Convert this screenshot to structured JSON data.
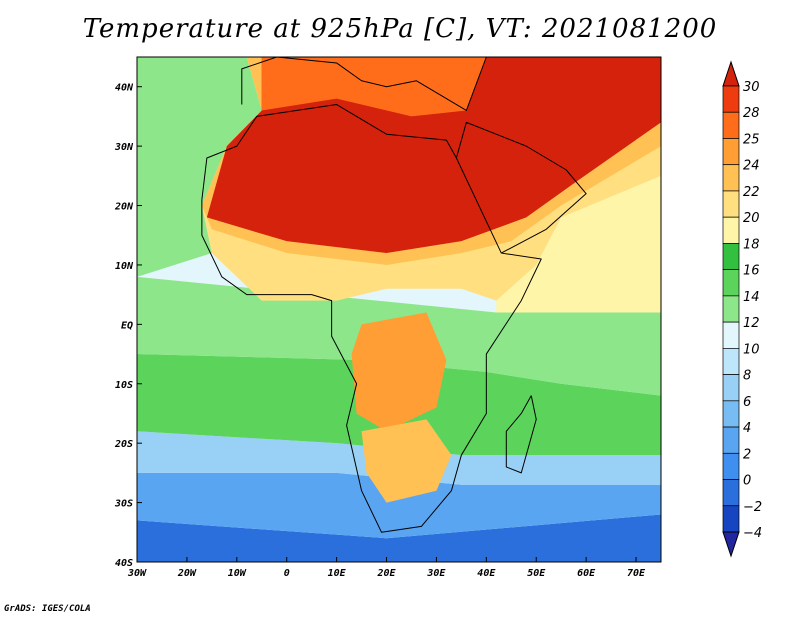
{
  "title": "Temperature at 925hPa [C], VT: 2021081200",
  "credit": "GrADS: IGES/COLA",
  "map": {
    "lon_range": [
      -30,
      75
    ],
    "lat_range": [
      -40,
      45
    ],
    "lon_ticks": [
      {
        "value": -30,
        "label": "30W"
      },
      {
        "value": -20,
        "label": "20W"
      },
      {
        "value": -10,
        "label": "10W"
      },
      {
        "value": 0,
        "label": "0"
      },
      {
        "value": 10,
        "label": "10E"
      },
      {
        "value": 20,
        "label": "20E"
      },
      {
        "value": 30,
        "label": "30E"
      },
      {
        "value": 40,
        "label": "40E"
      },
      {
        "value": 50,
        "label": "50E"
      },
      {
        "value": 60,
        "label": "60E"
      },
      {
        "value": 70,
        "label": "70E"
      }
    ],
    "lat_ticks": [
      {
        "value": 40,
        "label": "40N"
      },
      {
        "value": 30,
        "label": "30N"
      },
      {
        "value": 20,
        "label": "20N"
      },
      {
        "value": 10,
        "label": "10N"
      },
      {
        "value": 0,
        "label": "EQ"
      },
      {
        "value": -10,
        "label": "10S"
      },
      {
        "value": -20,
        "label": "20S"
      },
      {
        "value": -30,
        "label": "30S"
      },
      {
        "value": -40,
        "label": "40S"
      }
    ]
  },
  "colorbar": {
    "levels": [
      -4,
      -2,
      0,
      2,
      4,
      6,
      8,
      10,
      12,
      14,
      16,
      18,
      20,
      22,
      24,
      25,
      28,
      30
    ],
    "colors": [
      "#2226a0",
      "#1745c2",
      "#2a6fdc",
      "#3e8ff0",
      "#5aa5f2",
      "#78bcf4",
      "#99d0f6",
      "#bee6fa",
      "#e2f6fc",
      "#8ee68a",
      "#5cd45c",
      "#33c040",
      "#fff5a8",
      "#ffdf80",
      "#ffc154",
      "#ff9e34",
      "#ff6d1a",
      "#ee3c10",
      "#d4220c"
    ]
  },
  "regions": [
    {
      "name": "south-ocean",
      "color": "#2a6fdc",
      "points": [
        [
          -30,
          -40
        ],
        [
          75,
          -40
        ],
        [
          75,
          -32
        ],
        [
          20,
          -36
        ],
        [
          -30,
          -33
        ]
      ]
    },
    {
      "name": "south-mid",
      "color": "#5aa5f2",
      "points": [
        [
          -30,
          -33
        ],
        [
          20,
          -36
        ],
        [
          75,
          -32
        ],
        [
          75,
          -27
        ],
        [
          35,
          -27
        ],
        [
          10,
          -25
        ],
        [
          -30,
          -25
        ]
      ]
    },
    {
      "name": "south-light",
      "color": "#99d0f6",
      "points": [
        [
          -30,
          -25
        ],
        [
          10,
          -25
        ],
        [
          35,
          -27
        ],
        [
          75,
          -27
        ],
        [
          75,
          -22
        ],
        [
          35,
          -22
        ],
        [
          10,
          -20
        ],
        [
          -30,
          -18
        ]
      ]
    },
    {
      "name": "tropics-green",
      "color": "#5cd45c",
      "points": [
        [
          -30,
          -18
        ],
        [
          10,
          -20
        ],
        [
          35,
          -22
        ],
        [
          75,
          -22
        ],
        [
          75,
          -12
        ],
        [
          55,
          -10
        ],
        [
          40,
          -8
        ],
        [
          15,
          -6
        ],
        [
          -30,
          -5
        ]
      ]
    },
    {
      "name": "tropics-pale",
      "color": "#8ee68a",
      "points": [
        [
          -30,
          -5
        ],
        [
          15,
          -6
        ],
        [
          40,
          -8
        ],
        [
          55,
          -10
        ],
        [
          75,
          -12
        ],
        [
          75,
          2
        ],
        [
          42,
          2
        ],
        [
          -30,
          8
        ]
      ]
    },
    {
      "name": "atlantic-north",
      "color": "#8ee68a",
      "points": [
        [
          -30,
          8
        ],
        [
          -15,
          12
        ],
        [
          -17,
          20
        ],
        [
          -12,
          30
        ],
        [
          -5,
          36
        ],
        [
          -8,
          45
        ],
        [
          -30,
          45
        ]
      ]
    },
    {
      "name": "indian-yellow",
      "color": "#fff5a8",
      "points": [
        [
          42,
          2
        ],
        [
          75,
          2
        ],
        [
          75,
          25
        ],
        [
          55,
          18
        ],
        [
          50,
          10
        ],
        [
          42,
          4
        ]
      ]
    },
    {
      "name": "west-africa",
      "color": "#ffdf80",
      "points": [
        [
          -15,
          12
        ],
        [
          -5,
          4
        ],
        [
          10,
          4
        ],
        [
          20,
          6
        ],
        [
          35,
          6
        ],
        [
          42,
          4
        ],
        [
          50,
          10
        ],
        [
          55,
          18
        ],
        [
          75,
          25
        ],
        [
          75,
          45
        ],
        [
          -8,
          45
        ],
        [
          -5,
          36
        ],
        [
          -12,
          30
        ],
        [
          -17,
          20
        ]
      ]
    },
    {
      "name": "sahel-orange",
      "color": "#ffc154",
      "points": [
        [
          -15,
          16
        ],
        [
          0,
          12
        ],
        [
          20,
          10
        ],
        [
          35,
          12
        ],
        [
          45,
          14
        ],
        [
          55,
          20
        ],
        [
          75,
          30
        ],
        [
          75,
          45
        ],
        [
          -8,
          45
        ],
        [
          -5,
          36
        ],
        [
          -12,
          30
        ],
        [
          -17,
          20
        ]
      ]
    },
    {
      "name": "sahara-hot",
      "color": "#d4220c",
      "points": [
        [
          -16,
          18
        ],
        [
          0,
          14
        ],
        [
          20,
          12
        ],
        [
          35,
          14
        ],
        [
          48,
          18
        ],
        [
          58,
          24
        ],
        [
          75,
          34
        ],
        [
          75,
          45
        ],
        [
          -5,
          45
        ],
        [
          -5,
          36
        ],
        [
          -12,
          30
        ]
      ]
    },
    {
      "name": "mediterranean",
      "color": "#ff6d1a",
      "points": [
        [
          -5,
          36
        ],
        [
          10,
          38
        ],
        [
          25,
          35
        ],
        [
          36,
          36
        ],
        [
          40,
          45
        ],
        [
          -5,
          45
        ]
      ]
    },
    {
      "name": "central-africa",
      "color": "#ff9e34",
      "points": [
        [
          15,
          0
        ],
        [
          28,
          2
        ],
        [
          32,
          -6
        ],
        [
          30,
          -14
        ],
        [
          20,
          -18
        ],
        [
          14,
          -15
        ],
        [
          13,
          -5
        ]
      ]
    },
    {
      "name": "south-africa-interior",
      "color": "#ffc154",
      "points": [
        [
          15,
          -18
        ],
        [
          28,
          -16
        ],
        [
          33,
          -22
        ],
        [
          30,
          -28
        ],
        [
          20,
          -30
        ],
        [
          16,
          -25
        ]
      ]
    }
  ],
  "coastlines": [
    {
      "name": "africa",
      "points": [
        [
          -17,
          21
        ],
        [
          -16,
          28
        ],
        [
          -10,
          30
        ],
        [
          -6,
          35
        ],
        [
          10,
          37
        ],
        [
          20,
          32
        ],
        [
          32,
          31
        ],
        [
          34,
          28
        ],
        [
          43,
          12
        ],
        [
          51,
          11
        ],
        [
          47,
          4
        ],
        [
          40,
          -5
        ],
        [
          40,
          -15
        ],
        [
          35,
          -22
        ],
        [
          33,
          -28
        ],
        [
          27,
          -34
        ],
        [
          19,
          -35
        ],
        [
          15,
          -28
        ],
        [
          12,
          -17
        ],
        [
          14,
          -10
        ],
        [
          9,
          -2
        ],
        [
          9,
          4
        ],
        [
          5,
          5
        ],
        [
          -8,
          5
        ],
        [
          -13,
          8
        ],
        [
          -17,
          15
        ]
      ]
    },
    {
      "name": "madagascar",
      "points": [
        [
          49,
          -12
        ],
        [
          50,
          -16
        ],
        [
          47,
          -25
        ],
        [
          44,
          -24
        ],
        [
          44,
          -18
        ],
        [
          47,
          -15
        ]
      ]
    },
    {
      "name": "arabia",
      "points": [
        [
          34,
          28
        ],
        [
          36,
          34
        ],
        [
          48,
          30
        ],
        [
          56,
          26
        ],
        [
          60,
          22
        ],
        [
          52,
          16
        ],
        [
          43,
          12
        ]
      ]
    },
    {
      "name": "europe",
      "points": [
        [
          -9,
          37
        ],
        [
          -9,
          43
        ],
        [
          -2,
          45
        ],
        [
          10,
          44
        ],
        [
          15,
          41
        ],
        [
          20,
          40
        ],
        [
          26,
          41
        ],
        [
          36,
          36
        ],
        [
          40,
          45
        ]
      ]
    }
  ]
}
